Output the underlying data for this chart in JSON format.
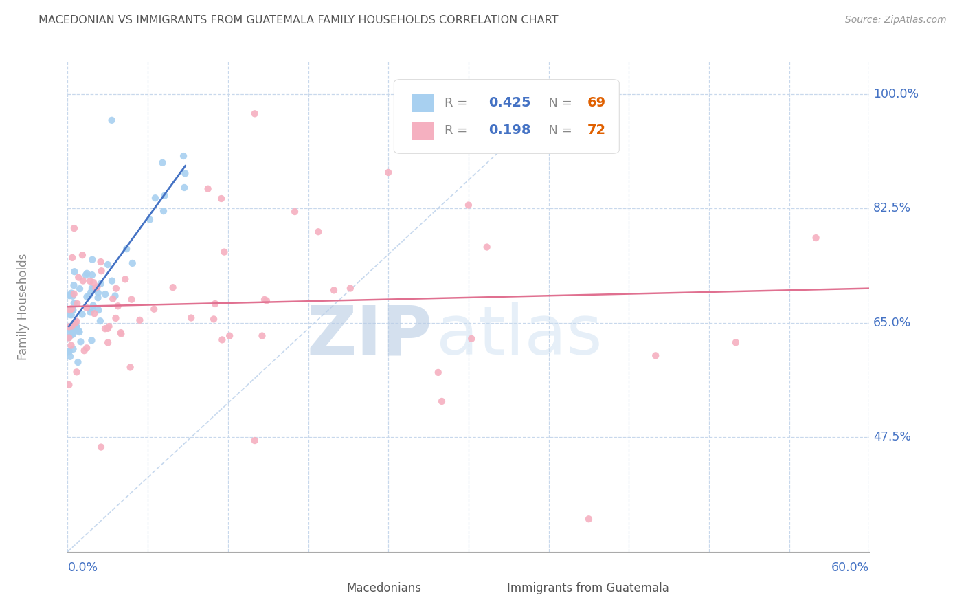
{
  "title": "MACEDONIAN VS IMMIGRANTS FROM GUATEMALA FAMILY HOUSEHOLDS CORRELATION CHART",
  "source": "Source: ZipAtlas.com",
  "ylabel": "Family Households",
  "xlim": [
    0.0,
    0.6
  ],
  "ylim": [
    0.3,
    1.05
  ],
  "yticks": [
    0.475,
    0.65,
    0.825,
    1.0
  ],
  "ytick_labels": [
    "47.5%",
    "65.0%",
    "82.5%",
    "100.0%"
  ],
  "xtick_left_label": "0.0%",
  "xtick_right_label": "60.0%",
  "legend_R1": "0.425",
  "legend_N1": "69",
  "legend_R2": "0.198",
  "legend_N2": "72",
  "label1": "Macedonians",
  "label2": "Immigrants from Guatemala",
  "color1": "#a8d0f0",
  "color2": "#f5b0c0",
  "trendline1_color": "#4472c4",
  "trendline2_color": "#e07090",
  "diagonal_color": "#c0d4ec",
  "background_color": "#ffffff",
  "grid_color": "#c8d8ec",
  "axis_label_color": "#888888",
  "tick_color": "#4472c4",
  "watermark_zip_color": "#b8cce4",
  "watermark_atlas_color": "#c8ddf0",
  "legend_R_color": "#888888",
  "legend_val_color": "#4472c4",
  "legend_N_color": "#888888",
  "legend_Nval_color": "#e06000"
}
